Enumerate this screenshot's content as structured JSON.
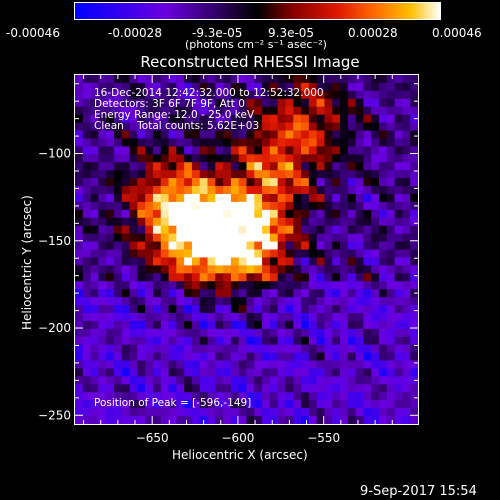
{
  "colorbar": {
    "ticks": [
      "-0.00046",
      "-0.00028",
      "-9.3e-05",
      "9.3e-05",
      "0.00028",
      "0.00046"
    ],
    "tick_values": [
      -0.00046,
      -0.00028,
      -9.3e-05,
      9.3e-05,
      0.00028,
      0.00046
    ],
    "range": [
      -0.00046,
      0.00046
    ],
    "unit": "(photons cm⁻² s⁻¹ asec⁻²)",
    "colormap": [
      "#0000ff",
      "#6a00e0",
      "#000000",
      "#8a0000",
      "#e01800",
      "#ff6a00",
      "#ffc000",
      "#ffffff"
    ]
  },
  "chart_data": {
    "type": "heatmap",
    "title": "Reconstructed RHESSI Image",
    "xlabel": "Heliocentric X (arcsec)",
    "ylabel": "Heliocentric Y (arcsec)",
    "xlim": [
      -695,
      -495
    ],
    "ylim": [
      -255,
      -55
    ],
    "x_ticks": [
      -650,
      -600,
      -550
    ],
    "y_ticks": [
      -100,
      -150,
      -200,
      -250
    ],
    "grid": false,
    "peak_position": [
      -596,
      -149
    ],
    "peak_label": "Position of Peak = [-596,-149]",
    "info_lines": [
      "16-Dec-2014 12:42:32.000 to 12:52:32.000",
      "Detectors: 3F 6F 7F 9F, Att 0",
      "Energy Range: 12.0 - 25.0 keV",
      "Clean    Total counts: 5.62E+03"
    ],
    "sources": [
      {
        "x": -596,
        "y": -149,
        "intensity": 1.0
      },
      {
        "x": -625,
        "y": -147,
        "intensity": 0.85
      },
      {
        "x": -640,
        "y": -125,
        "intensity": 0.55
      },
      {
        "x": -580,
        "y": -110,
        "intensity": 0.5
      },
      {
        "x": -560,
        "y": -80,
        "intensity": 0.45
      }
    ]
  },
  "footer": {
    "timestamp": "9-Sep-2017 15:54"
  }
}
